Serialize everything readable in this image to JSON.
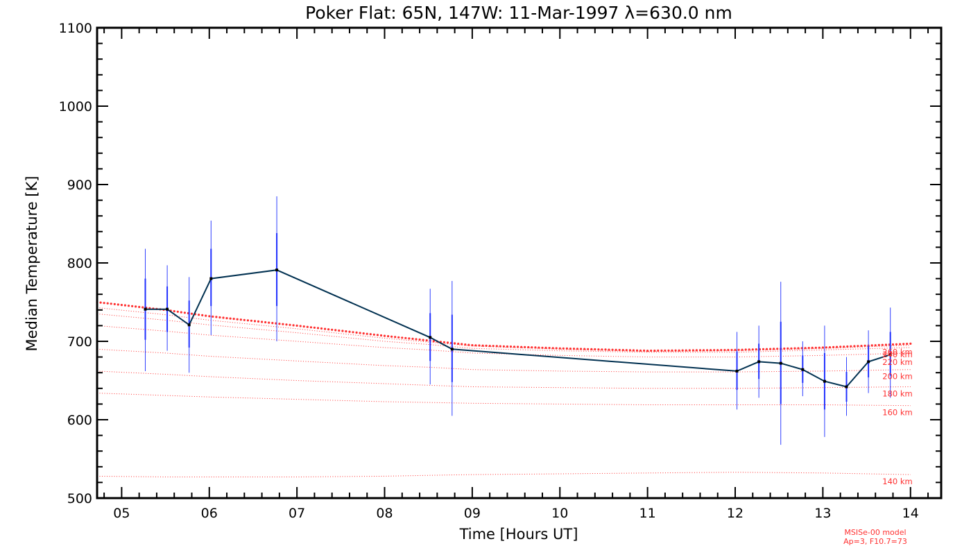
{
  "chart_data": {
    "type": "line",
    "title": "Poker Flat: 65N, 147W: 11-Mar-1997 λ=630.0 nm",
    "xlabel": "Time [Hours UT]",
    "ylabel": "Median Temperature [K]",
    "xlim": [
      4.72,
      14.35
    ],
    "ylim": [
      500,
      1100
    ],
    "xticks": [
      {
        "v": 5,
        "label": "05"
      },
      {
        "v": 6,
        "label": "06"
      },
      {
        "v": 7,
        "label": "07"
      },
      {
        "v": 8,
        "label": "08"
      },
      {
        "v": 9,
        "label": "09"
      },
      {
        "v": 10,
        "label": "10"
      },
      {
        "v": 11,
        "label": "11"
      },
      {
        "v": 12,
        "label": "12"
      },
      {
        "v": 13,
        "label": "13"
      },
      {
        "v": 14,
        "label": "14"
      }
    ],
    "yticks": [
      {
        "v": 500,
        "label": "500"
      },
      {
        "v": 600,
        "label": "600"
      },
      {
        "v": 700,
        "label": "700"
      },
      {
        "v": 800,
        "label": "800"
      },
      {
        "v": 900,
        "label": "900"
      },
      {
        "v": 1000,
        "label": "1000"
      },
      {
        "v": 1100,
        "label": "1100"
      }
    ],
    "series": [
      {
        "name": "Median temperature",
        "color": "#003050",
        "points": [
          {
            "x": 5.27,
            "y": 741,
            "inner": [
              702,
              780
            ],
            "outer": [
              662,
              818
            ]
          },
          {
            "x": 5.52,
            "y": 741,
            "inner": [
              712,
              770
            ],
            "outer": [
              688,
              797
            ]
          },
          {
            "x": 5.77,
            "y": 721,
            "inner": [
              692,
              752
            ],
            "outer": [
              660,
              782
            ]
          },
          {
            "x": 6.02,
            "y": 780,
            "inner": [
              745,
              818
            ],
            "outer": [
              708,
              854
            ]
          },
          {
            "x": 6.77,
            "y": 791,
            "inner": [
              745,
              838
            ],
            "outer": [
              700,
              885
            ]
          },
          {
            "x": 8.52,
            "y": 705,
            "inner": [
              675,
              736
            ],
            "outer": [
              645,
              767
            ]
          },
          {
            "x": 8.77,
            "y": 690,
            "inner": [
              648,
              734
            ],
            "outer": [
              605,
              777
            ]
          },
          {
            "x": 12.02,
            "y": 662,
            "inner": [
              638,
              687
            ],
            "outer": [
              613,
              712
            ]
          },
          {
            "x": 12.27,
            "y": 674,
            "inner": [
              652,
              697
            ],
            "outer": [
              628,
              720
            ]
          },
          {
            "x": 12.52,
            "y": 672,
            "inner": [
              620,
              725
            ],
            "outer": [
              568,
              776
            ]
          },
          {
            "x": 12.77,
            "y": 664,
            "inner": [
              647,
              682
            ],
            "outer": [
              630,
              700
            ]
          },
          {
            "x": 13.02,
            "y": 649,
            "inner": [
              613,
              685
            ],
            "outer": [
              578,
              720
            ]
          },
          {
            "x": 13.27,
            "y": 642,
            "inner": [
              623,
              661
            ],
            "outer": [
              605,
              680
            ]
          },
          {
            "x": 13.52,
            "y": 674,
            "inner": [
              654,
              694
            ],
            "outer": [
              634,
              714
            ]
          },
          {
            "x": 13.77,
            "y": 683,
            "inner": [
              656,
              712
            ],
            "outer": [
              628,
              743
            ]
          }
        ]
      }
    ],
    "model": {
      "name": "MSISe-00 model",
      "params": "Ap=3, F10.7=73",
      "color": "#ff3030",
      "x": [
        4.72,
        5.5,
        6,
        7,
        8,
        8.5,
        9,
        10,
        11,
        12,
        13,
        14
      ],
      "exospheric": [
        750,
        740,
        732,
        720,
        707,
        701,
        695,
        691,
        688,
        689,
        692,
        697
      ],
      "levels": [
        {
          "label": "260 km",
          "values": [
            743,
            734,
            727,
            716,
            704,
            699,
            694,
            690,
            687,
            688,
            691,
            695
          ]
        },
        {
          "label": "240 km",
          "values": [
            735,
            727,
            721,
            711,
            700,
            696,
            691,
            688,
            686,
            686,
            689,
            692
          ]
        },
        {
          "label": "220 km",
          "values": [
            720,
            713,
            708,
            700,
            692,
            689,
            685,
            682,
            680,
            680,
            682,
            685
          ]
        },
        {
          "label": "200 km",
          "values": [
            690,
            685,
            681,
            675,
            669,
            667,
            664,
            662,
            661,
            661,
            662,
            664
          ]
        },
        {
          "label": "180 km",
          "values": [
            662,
            658,
            655,
            650,
            646,
            644,
            642,
            641,
            640,
            640,
            641,
            642
          ]
        },
        {
          "label": "160 km",
          "values": [
            634,
            631,
            629,
            626,
            623,
            622,
            621,
            620,
            619,
            619,
            619,
            618
          ]
        },
        {
          "label": "140 km",
          "values": [
            528,
            527,
            527,
            527,
            528,
            529,
            530,
            531,
            532,
            533,
            532,
            530
          ]
        }
      ],
      "label_offsets": {
        "260 km": 0,
        "240 km": 0,
        "220 km": 3,
        "200 km": 0,
        "180 km": 0,
        "160 km": 0,
        "140 km": 0
      }
    }
  }
}
